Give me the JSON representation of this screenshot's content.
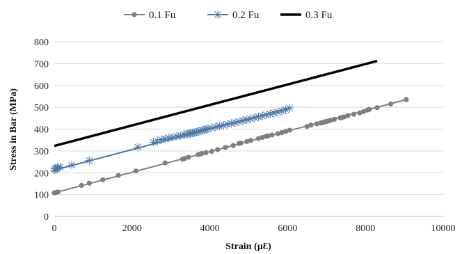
{
  "chart_data": {
    "type": "scatter",
    "xlabel": "Strain (µƐ)",
    "ylabel": "Stress in Bar  (MPa)",
    "xlim": [
      0,
      10000
    ],
    "ylim": [
      0,
      800
    ],
    "x_ticks": [
      0,
      2000,
      4000,
      6000,
      8000,
      10000
    ],
    "y_ticks": [
      0,
      100,
      200,
      300,
      400,
      500,
      600,
      700,
      800
    ],
    "grid": "horizontal",
    "legend_position": "top",
    "series": [
      {
        "name": "0.1 Fu",
        "color": "#7f7f7f",
        "marker": "circle",
        "line": true,
        "x": [
          0,
          50,
          100,
          700,
          900,
          1250,
          1650,
          2100,
          2850,
          3300,
          3350,
          3450,
          3700,
          3750,
          3800,
          3900,
          4050,
          4200,
          4400,
          4600,
          4750,
          4800,
          4950,
          5050,
          5250,
          5350,
          5450,
          5500,
          5600,
          5750,
          5850,
          5950,
          6050,
          6500,
          6600,
          6750,
          6850,
          6900,
          6950,
          7000,
          7050,
          7100,
          7200,
          7350,
          7400,
          7450,
          7550,
          7700,
          7850,
          7950,
          8050,
          8100,
          8300,
          8650,
          9050
        ],
        "y": [
          108,
          110,
          112,
          142,
          152,
          168,
          188,
          208,
          245,
          262,
          265,
          271,
          283,
          285,
          289,
          292,
          298,
          306,
          316,
          325,
          334,
          336,
          343,
          348,
          357,
          362,
          367,
          369,
          373,
          379,
          384,
          389,
          395,
          412,
          418,
          424,
          428,
          430,
          433,
          435,
          437,
          440,
          445,
          451,
          453,
          456,
          462,
          468,
          474,
          480,
          487,
          490,
          498,
          515,
          535
        ]
      },
      {
        "name": "0.2 Fu",
        "color": "#4a78a8",
        "marker": "star",
        "line": true,
        "x": [
          0,
          20,
          50,
          80,
          100,
          150,
          450,
          900,
          2150,
          2550,
          2650,
          2750,
          2850,
          2950,
          3050,
          3150,
          3250,
          3350,
          3400,
          3450,
          3500,
          3550,
          3600,
          3650,
          3700,
          3750,
          3800,
          3850,
          3900,
          3950,
          4050,
          4150,
          4250,
          4350,
          4450,
          4550,
          4650,
          4750,
          4850,
          4950,
          5050,
          5150,
          5250,
          5350,
          5450,
          5550,
          5650,
          5750,
          5850,
          5950,
          6050
        ],
        "y": [
          212,
          218,
          220,
          222,
          225,
          226,
          235,
          256,
          318,
          340,
          346,
          352,
          355,
          360,
          363,
          367,
          370,
          374,
          376,
          378,
          380,
          382,
          384,
          386,
          389,
          391,
          394,
          396,
          399,
          401,
          405,
          410,
          414,
          418,
          422,
          426,
          430,
          434,
          439,
          443,
          447,
          452,
          456,
          460,
          465,
          469,
          474,
          478,
          483,
          488,
          497
        ]
      },
      {
        "name": "0.3 Fu",
        "color": "#000000",
        "marker": "none",
        "line": true,
        "x": [
          0,
          8300
        ],
        "y": [
          323,
          712
        ]
      }
    ]
  }
}
